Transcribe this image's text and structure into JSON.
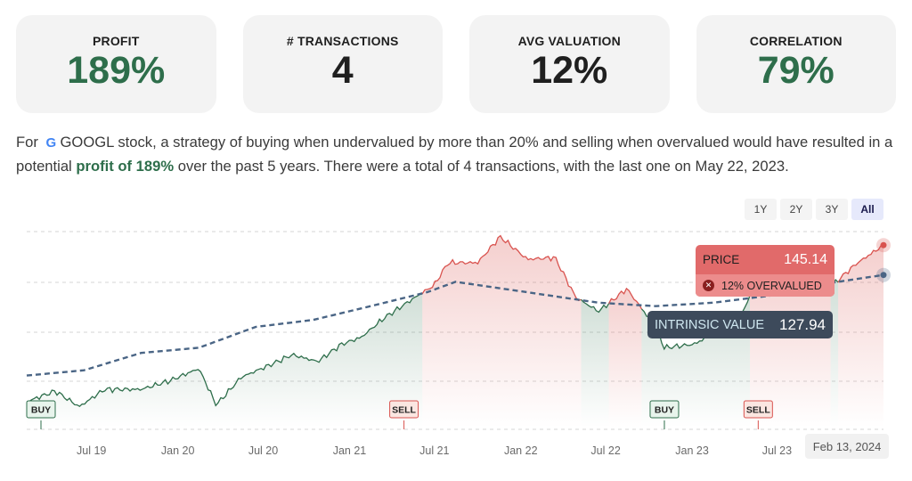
{
  "cards": [
    {
      "label": "PROFIT",
      "value": "189%",
      "color": "#2e6e4b"
    },
    {
      "label": "# TRANSACTIONS",
      "value": "4",
      "color": "#1f1f1f"
    },
    {
      "label": "AVG VALUATION",
      "value": "12%",
      "color": "#1f1f1f"
    },
    {
      "label": "CORRELATION",
      "value": "79%",
      "color": "#2e6e4b"
    }
  ],
  "description": {
    "prefix": "For",
    "logo_icon": "google-icon",
    "text1": "GOOGL stock, a strategy of buying when undervalued by more than 20% and selling when overvalued would have resulted in a potential",
    "profit": "profit of 189%",
    "text2": "over the past 5 years. There were a total of 4 transactions, with the last one on May 22, 2023."
  },
  "range_buttons": [
    "1Y",
    "2Y",
    "3Y",
    "All"
  ],
  "active_range": "All",
  "tooltip_price": {
    "label": "PRICE",
    "value": "145.14",
    "status": "12% OVERVALUED",
    "icon": "x-circle-icon"
  },
  "tooltip_intrinsic": {
    "label": "INTRINSIC VALUE",
    "value": "127.94"
  },
  "date_badge": "Feb 13, 2024",
  "colors": {
    "price_under": "#2e6e4b",
    "price_over": "#d9534f",
    "intrinsic": "#4a6585",
    "signal_buy": "#2e6e4b",
    "signal_sell": "#d9534f"
  },
  "chart_data": {
    "type": "line",
    "x_ticks": [
      "Jul 19",
      "Jan 20",
      "Jul 20",
      "Jan 21",
      "Jul 21",
      "Jan 22",
      "Jul 22",
      "Jan 23",
      "Jul 23"
    ],
    "series": [
      {
        "name": "PRICE",
        "style": "solid",
        "points": [
          [
            "2019-02-13",
            55
          ],
          [
            "2019-04-15",
            61
          ],
          [
            "2019-06-05",
            52
          ],
          [
            "2019-07-29",
            62
          ],
          [
            "2019-10-15",
            62
          ],
          [
            "2019-12-15",
            67
          ],
          [
            "2020-02-15",
            74
          ],
          [
            "2020-03-23",
            53
          ],
          [
            "2020-05-15",
            69
          ],
          [
            "2020-07-15",
            76
          ],
          [
            "2020-09-01",
            82
          ],
          [
            "2020-10-25",
            78
          ],
          [
            "2020-12-15",
            88
          ],
          [
            "2021-01-26",
            92
          ],
          [
            "2021-03-15",
            103
          ],
          [
            "2021-05-15",
            114
          ],
          [
            "2021-06-30",
            122
          ],
          [
            "2021-07-30",
            135
          ],
          [
            "2021-10-01",
            135
          ],
          [
            "2021-11-18",
            150
          ],
          [
            "2022-01-15",
            137
          ],
          [
            "2022-03-15",
            138
          ],
          [
            "2022-04-28",
            115
          ],
          [
            "2022-06-16",
            107
          ],
          [
            "2022-08-15",
            120
          ],
          [
            "2022-10-15",
            98
          ],
          [
            "2022-11-03",
            86
          ],
          [
            "2023-01-05",
            88
          ],
          [
            "2023-02-15",
            94
          ],
          [
            "2023-04-15",
            105
          ],
          [
            "2023-05-22",
            125
          ],
          [
            "2023-07-15",
            126
          ],
          [
            "2023-09-01",
            135
          ],
          [
            "2023-10-27",
            122
          ],
          [
            "2023-12-15",
            134
          ],
          [
            "2024-02-13",
            145.14
          ]
        ]
      },
      {
        "name": "INTRINSIC VALUE",
        "style": "dashed",
        "points": [
          [
            "2019-02-13",
            70
          ],
          [
            "2019-06-15",
            73
          ],
          [
            "2019-10-15",
            83
          ],
          [
            "2020-02-15",
            86
          ],
          [
            "2020-06-15",
            98
          ],
          [
            "2020-10-15",
            102
          ],
          [
            "2021-02-15",
            110
          ],
          [
            "2021-06-15",
            118
          ],
          [
            "2021-08-15",
            124
          ],
          [
            "2022-01-15",
            118
          ],
          [
            "2022-06-15",
            112
          ],
          [
            "2022-10-15",
            110
          ],
          [
            "2023-02-15",
            112
          ],
          [
            "2023-06-15",
            116
          ],
          [
            "2023-10-15",
            123
          ],
          [
            "2024-02-13",
            127.94
          ]
        ]
      }
    ],
    "signals": [
      {
        "type": "BUY",
        "date": "2019-02-13"
      },
      {
        "type": "SELL",
        "date": "2021-04-27"
      },
      {
        "type": "BUY",
        "date": "2022-11-03"
      },
      {
        "type": "SELL",
        "date": "2023-05-22"
      }
    ],
    "ylim": [
      40,
      155
    ],
    "grid": true
  }
}
